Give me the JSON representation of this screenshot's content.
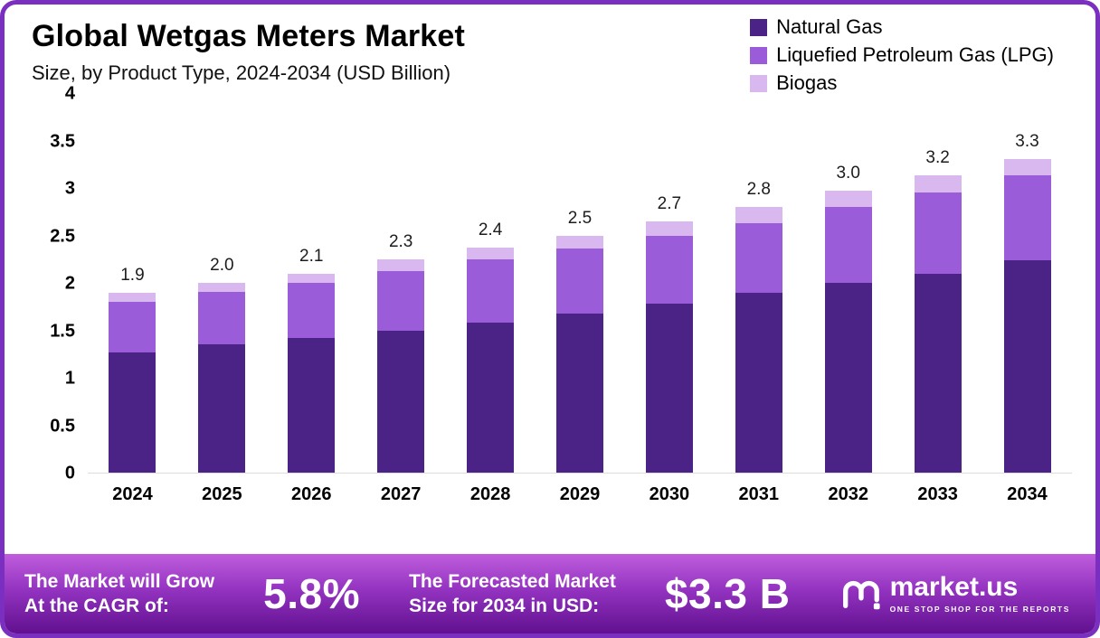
{
  "page": {
    "border_color": "#7b2fc0",
    "background": "#ffffff"
  },
  "header": {
    "title": "Global Wetgas Meters Market",
    "subtitle": "Size, by Product Type, 2024-2034 (USD Billion)"
  },
  "chart_data": {
    "type": "bar",
    "stacked": true,
    "title": "Global Wetgas Meters Market Size, by Product Type, 2024-2034 (USD Billion)",
    "categories": [
      "2024",
      "2025",
      "2026",
      "2027",
      "2028",
      "2029",
      "2030",
      "2031",
      "2032",
      "2033",
      "2034"
    ],
    "series": [
      {
        "name": "Natural Gas",
        "color": "#4b2386",
        "values": [
          1.27,
          1.35,
          1.42,
          1.5,
          1.58,
          1.68,
          1.78,
          1.9,
          2.0,
          2.1,
          2.24
        ]
      },
      {
        "name": "Liquefied Petroleum Gas (LPG)",
        "color": "#9a5cd8",
        "values": [
          0.53,
          0.55,
          0.58,
          0.62,
          0.67,
          0.68,
          0.72,
          0.73,
          0.8,
          0.85,
          0.89
        ]
      },
      {
        "name": "Biogas",
        "color": "#d9b8ef",
        "values": [
          0.1,
          0.1,
          0.1,
          0.13,
          0.12,
          0.14,
          0.15,
          0.17,
          0.17,
          0.18,
          0.17
        ]
      }
    ],
    "totals": [
      "1.9",
      "2.0",
      "2.1",
      "2.3",
      "2.4",
      "2.5",
      "2.7",
      "2.8",
      "3.0",
      "3.2",
      "3.3"
    ],
    "xlabel": "",
    "ylabel": "",
    "ylim": [
      0,
      4
    ],
    "yticks": [
      "4",
      "3.5",
      "3",
      "2.5",
      "2",
      "1.5",
      "1",
      "0.5",
      "0"
    ],
    "grid": false,
    "legend_position": "top-right"
  },
  "footer": {
    "cagr_label_line1": "The Market will Grow",
    "cagr_label_line2": "At the CAGR of:",
    "cagr_value": "5.8%",
    "forecast_label_line1": "The Forecasted Market",
    "forecast_label_line2": "Size for 2034 in USD:",
    "forecast_value": "$3.3 B",
    "brand_name": "market.us",
    "brand_tagline": "ONE STOP SHOP FOR THE REPORTS"
  }
}
